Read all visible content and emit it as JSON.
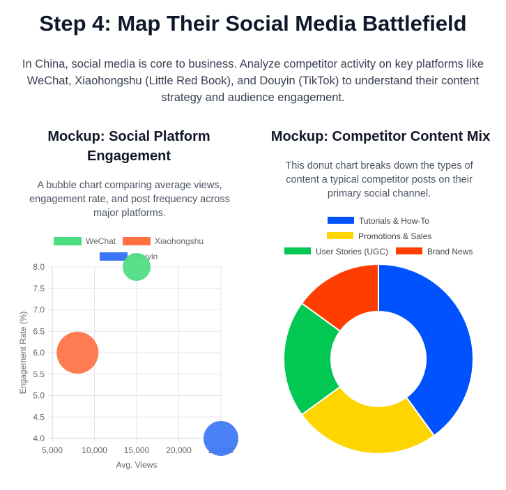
{
  "header": {
    "title": "Step 4: Map Their Social Media Battlefield",
    "intro": "In China, social media is core to business. Analyze competitor activity on key platforms like WeChat, Xiaohongshu (Little Red Book), and Douyin (TikTok) to understand their content strategy and audience engagement."
  },
  "left_card": {
    "title": "Mockup: Social Platform Engagement",
    "description": "A bubble chart comparing average views, engagement rate, and post frequency across major platforms."
  },
  "right_card": {
    "title": "Mockup: Competitor Content Mix",
    "description": "This donut chart breaks down the types of content a typical competitor posts on their primary social channel."
  },
  "chart_data": [
    {
      "type": "scatter",
      "subtype": "bubble",
      "title": "Mockup: Social Platform Engagement",
      "xlabel": "Avg. Views",
      "ylabel": "Engagement Rate (%)",
      "xlim": [
        5000,
        25000
      ],
      "ylim": [
        4.0,
        8.0
      ],
      "xticks": [
        "5,000",
        "10,000",
        "15,000",
        "20,000",
        "25,000"
      ],
      "yticks": [
        "8.0",
        "7.5",
        "7.0",
        "6.5",
        "6.0",
        "5.5",
        "5.0",
        "4.5",
        "4.0"
      ],
      "grid": true,
      "legend_position": "top",
      "series": [
        {
          "name": "WeChat",
          "color": "#4ade80",
          "points": [
            {
              "x": 15000,
              "y": 8.0,
              "r": 20
            }
          ]
        },
        {
          "name": "Xiaohongshu",
          "color": "#ff7043",
          "points": [
            {
              "x": 8000,
              "y": 6.0,
              "r": 30
            }
          ]
        },
        {
          "name": "Douyin",
          "color": "#3b76f6",
          "points": [
            {
              "x": 25000,
              "y": 4.0,
              "r": 25
            }
          ]
        }
      ]
    },
    {
      "type": "pie",
      "subtype": "donut",
      "title": "Mockup: Competitor Content Mix",
      "legend_position": "top",
      "categories": [
        "Tutorials & How-To",
        "Promotions & Sales",
        "User Stories (UGC)",
        "Brand News"
      ],
      "values": [
        40,
        25,
        20,
        15
      ],
      "colors": [
        "#0052ff",
        "#ffd500",
        "#00c853",
        "#ff3d00"
      ]
    }
  ]
}
